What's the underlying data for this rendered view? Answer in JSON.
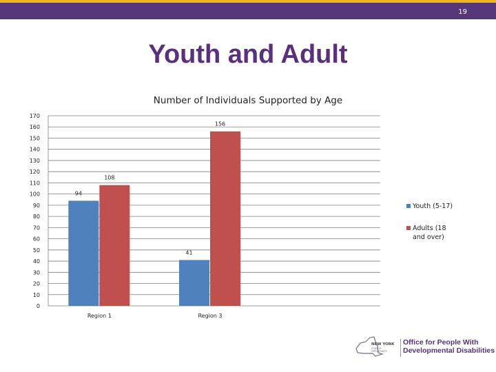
{
  "slide": {
    "number": "19",
    "title": "Youth and Adult"
  },
  "logo": {
    "state_line1": "NEW YORK",
    "state_line2": "STATE OF",
    "state_line3": "OPPORTUNITY.",
    "agency_line1": "Office for People With",
    "agency_line2": "Developmental Disabilities"
  },
  "colors": {
    "header_bar": "#55377a",
    "header_accent": "#f2b41f",
    "title": "#58307e",
    "youth": "#4f81bd",
    "adults": "#c0504d"
  },
  "chart_data": {
    "type": "bar",
    "title": "Number of Individuals Supported by Age",
    "categories": [
      "Region 1",
      "Region 3"
    ],
    "series": [
      {
        "name": "Youth (5-17)",
        "values": [
          94,
          41
        ],
        "color": "#4f81bd"
      },
      {
        "name": "Adults (18 and over)",
        "values": [
          108,
          156
        ],
        "color": "#c0504d"
      }
    ],
    "ylim": [
      0,
      170
    ],
    "ytick_step": 10,
    "grid": true,
    "legend": "right",
    "data_labels": true
  }
}
